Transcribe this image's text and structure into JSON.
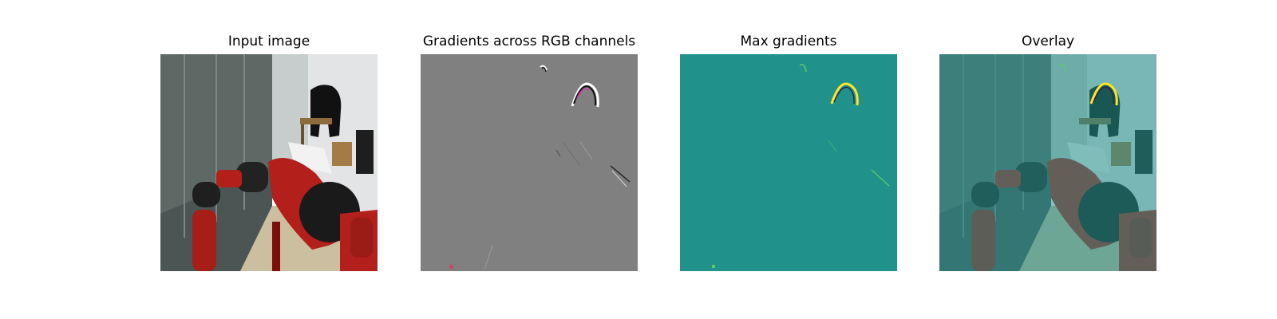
{
  "panels": [
    {
      "title": "Input image"
    },
    {
      "title": "Gradients across RGB channels"
    },
    {
      "title": "Max gradients"
    },
    {
      "title": "Overlay"
    }
  ],
  "colors": {
    "gradient_bg": "#808080",
    "max_gradient_bg": "#21918c",
    "overlay_tint": "#5fb8b4",
    "robot_red": "#b31f1a",
    "highlight_yellow": "#fde725"
  }
}
